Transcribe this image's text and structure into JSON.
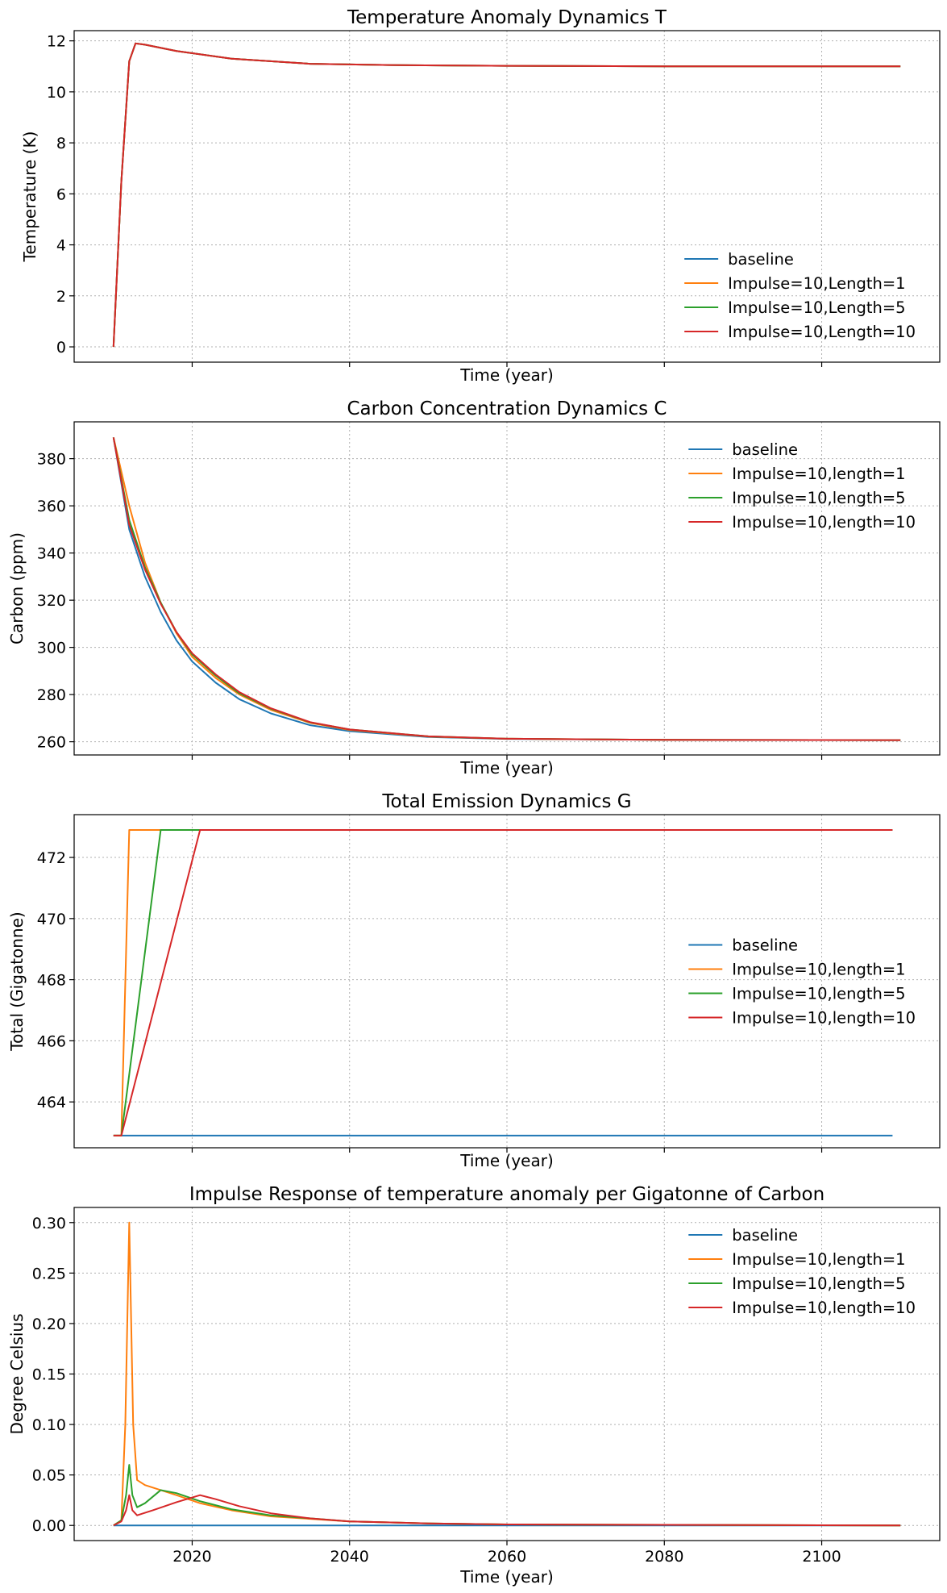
{
  "chart_data": [
    {
      "type": "line",
      "title": "Temperature Anomaly Dynamics T",
      "xlabel": "Time (year)",
      "ylabel": "Temperature (K)",
      "xlim": [
        2005,
        2115
      ],
      "ylim": [
        -0.6,
        12.4
      ],
      "xticks": [
        2020,
        2040,
        2060,
        2080,
        2100
      ],
      "show_xticklabels": false,
      "yticks": [
        0,
        2,
        4,
        6,
        8,
        10,
        12
      ],
      "ytick_labels": [
        "0",
        "2",
        "4",
        "6",
        "8",
        "10",
        "12"
      ],
      "grid": true,
      "legend_position": "lower-right",
      "series": [
        {
          "name": "baseline",
          "color": "#1f77b4",
          "x": [
            2010,
            2011,
            2012,
            2012.8,
            2014,
            2018,
            2025,
            2035,
            2045,
            2060,
            2080,
            2110
          ],
          "values": [
            0,
            6.5,
            11.2,
            11.9,
            11.85,
            11.6,
            11.3,
            11.1,
            11.05,
            11.02,
            11.0,
            11.0
          ]
        },
        {
          "name": "Impulse=10,Length=1",
          "color": "#ff7f0e",
          "x": [
            2010,
            2011,
            2012,
            2012.8,
            2014,
            2018,
            2025,
            2035,
            2045,
            2060,
            2080,
            2110
          ],
          "values": [
            0,
            6.5,
            11.2,
            11.9,
            11.85,
            11.6,
            11.3,
            11.1,
            11.05,
            11.02,
            11.0,
            11.0
          ]
        },
        {
          "name": "Impulse=10,Length=5",
          "color": "#2ca02c",
          "x": [
            2010,
            2011,
            2012,
            2012.8,
            2014,
            2018,
            2025,
            2035,
            2045,
            2060,
            2080,
            2110
          ],
          "values": [
            0,
            6.5,
            11.2,
            11.9,
            11.85,
            11.6,
            11.3,
            11.1,
            11.05,
            11.02,
            11.0,
            11.0
          ]
        },
        {
          "name": "Impulse=10,Length=10",
          "color": "#d62728",
          "x": [
            2010,
            2011,
            2012,
            2012.8,
            2014,
            2018,
            2025,
            2035,
            2045,
            2060,
            2080,
            2110
          ],
          "values": [
            0,
            6.5,
            11.2,
            11.9,
            11.85,
            11.6,
            11.3,
            11.1,
            11.05,
            11.02,
            11.0,
            11.0
          ]
        }
      ]
    },
    {
      "type": "line",
      "title": "Carbon Concentration Dynamics C",
      "xlabel": "Time (year)",
      "ylabel": "Carbon (ppm)",
      "xlim": [
        2005,
        2115
      ],
      "ylim": [
        254.4,
        395.6
      ],
      "xticks": [
        2020,
        2040,
        2060,
        2080,
        2100
      ],
      "show_xticklabels": false,
      "yticks": [
        260,
        280,
        300,
        320,
        340,
        360,
        380
      ],
      "ytick_labels": [
        "260",
        "280",
        "300",
        "320",
        "340",
        "360",
        "380"
      ],
      "grid": true,
      "legend_position": "upper-right",
      "series": [
        {
          "name": "baseline",
          "color": "#1f77b4",
          "x": [
            2010,
            2012,
            2014,
            2016,
            2018,
            2020,
            2023,
            2026,
            2030,
            2035,
            2040,
            2050,
            2060,
            2080,
            2110
          ],
          "values": [
            389,
            350,
            330,
            315,
            303,
            294,
            285,
            278,
            272,
            267,
            264.5,
            262,
            261.2,
            260.8,
            260.7
          ]
        },
        {
          "name": "Impulse=10,length=1",
          "color": "#ff7f0e",
          "x": [
            2010,
            2012,
            2014,
            2016,
            2018,
            2020,
            2023,
            2026,
            2030,
            2035,
            2040,
            2050,
            2060,
            2080,
            2110
          ],
          "values": [
            389,
            360,
            336,
            319,
            306,
            296,
            287,
            280,
            273.5,
            268,
            265,
            262.2,
            261.3,
            260.8,
            260.7
          ]
        },
        {
          "name": "Impulse=10,length=5",
          "color": "#2ca02c",
          "x": [
            2010,
            2012,
            2014,
            2016,
            2018,
            2020,
            2023,
            2026,
            2030,
            2035,
            2040,
            2050,
            2060,
            2080,
            2110
          ],
          "values": [
            389,
            354,
            334,
            319,
            306.5,
            297,
            288,
            280.5,
            274,
            268.2,
            265.2,
            262.3,
            261.3,
            260.8,
            260.7
          ]
        },
        {
          "name": "Impulse=10,length=10",
          "color": "#d62728",
          "x": [
            2010,
            2012,
            2014,
            2016,
            2018,
            2020,
            2023,
            2026,
            2030,
            2035,
            2040,
            2050,
            2060,
            2080,
            2110
          ],
          "values": [
            389,
            352,
            333,
            318.5,
            306.5,
            297.5,
            288.5,
            281,
            274.2,
            268.3,
            265.2,
            262.3,
            261.3,
            260.8,
            260.7
          ]
        }
      ]
    },
    {
      "type": "line",
      "title": "Total Emission Dynamics G",
      "xlabel": "Time (year)",
      "ylabel": "Total (Gigatonne)",
      "xlim": [
        2005,
        2115
      ],
      "ylim": [
        462.5,
        473.4
      ],
      "xticks": [
        2020,
        2040,
        2060,
        2080,
        2100
      ],
      "show_xticklabels": false,
      "yticks": [
        464,
        466,
        468,
        470,
        472
      ],
      "ytick_labels": [
        "464",
        "466",
        "468",
        "470",
        "472"
      ],
      "grid": true,
      "legend_position": "center-right",
      "series": [
        {
          "name": "baseline",
          "color": "#1f77b4",
          "x": [
            2010,
            2109
          ],
          "values": [
            462.9,
            462.9
          ]
        },
        {
          "name": "Impulse=10,length=1",
          "color": "#ff7f0e",
          "x": [
            2010,
            2011,
            2012,
            2109
          ],
          "values": [
            462.9,
            462.9,
            472.9,
            472.9
          ]
        },
        {
          "name": "Impulse=10,length=5",
          "color": "#2ca02c",
          "x": [
            2010,
            2011,
            2016,
            2109
          ],
          "values": [
            462.9,
            462.9,
            472.9,
            472.9
          ]
        },
        {
          "name": "Impulse=10,length=10",
          "color": "#d62728",
          "x": [
            2010,
            2011,
            2021,
            2109
          ],
          "values": [
            462.9,
            462.9,
            472.9,
            472.9
          ]
        }
      ]
    },
    {
      "type": "line",
      "title": "Impulse Response of temperature anomaly per Gigatonne of Carbon",
      "xlabel": "Time (year)",
      "ylabel": "Degree Celsius",
      "xlim": [
        2005,
        2115
      ],
      "ylim": [
        -0.015,
        0.315
      ],
      "xticks": [
        2020,
        2040,
        2060,
        2080,
        2100
      ],
      "xtick_labels": [
        "2020",
        "2040",
        "2060",
        "2080",
        "2100"
      ],
      "show_xticklabels": true,
      "yticks": [
        0,
        0.05,
        0.1,
        0.15,
        0.2,
        0.25,
        0.3
      ],
      "ytick_labels": [
        "0.00",
        "0.05",
        "0.10",
        "0.15",
        "0.20",
        "0.25",
        "0.30"
      ],
      "grid": true,
      "legend_position": "upper-right",
      "series": [
        {
          "name": "baseline",
          "color": "#1f77b4",
          "x": [
            2010,
            2110
          ],
          "values": [
            0,
            0
          ]
        },
        {
          "name": "Impulse=10,length=1",
          "color": "#ff7f0e",
          "x": [
            2010,
            2011,
            2011.5,
            2012,
            2012.5,
            2013,
            2014,
            2016,
            2018,
            2021,
            2025,
            2030,
            2040,
            2050,
            2060,
            2110
          ],
          "values": [
            0,
            0.005,
            0.1,
            0.3,
            0.1,
            0.045,
            0.04,
            0.035,
            0.03,
            0.022,
            0.015,
            0.009,
            0.004,
            0.002,
            0.001,
            0
          ]
        },
        {
          "name": "Impulse=10,length=5",
          "color": "#2ca02c",
          "x": [
            2010,
            2011,
            2011.6,
            2012,
            2012.4,
            2013,
            2014,
            2016,
            2018,
            2021,
            2025,
            2030,
            2040,
            2050,
            2060,
            2110
          ],
          "values": [
            0,
            0.005,
            0.03,
            0.06,
            0.03,
            0.018,
            0.022,
            0.035,
            0.032,
            0.024,
            0.016,
            0.01,
            0.004,
            0.002,
            0.001,
            0
          ]
        },
        {
          "name": "Impulse=10,length=10",
          "color": "#d62728",
          "x": [
            2010,
            2011,
            2011.6,
            2012,
            2012.4,
            2013,
            2015,
            2018,
            2021,
            2023,
            2026,
            2030,
            2035,
            2040,
            2050,
            2060,
            2110
          ],
          "values": [
            0,
            0.004,
            0.015,
            0.03,
            0.015,
            0.01,
            0.015,
            0.023,
            0.03,
            0.026,
            0.019,
            0.012,
            0.007,
            0.004,
            0.002,
            0.001,
            0
          ]
        }
      ]
    }
  ]
}
